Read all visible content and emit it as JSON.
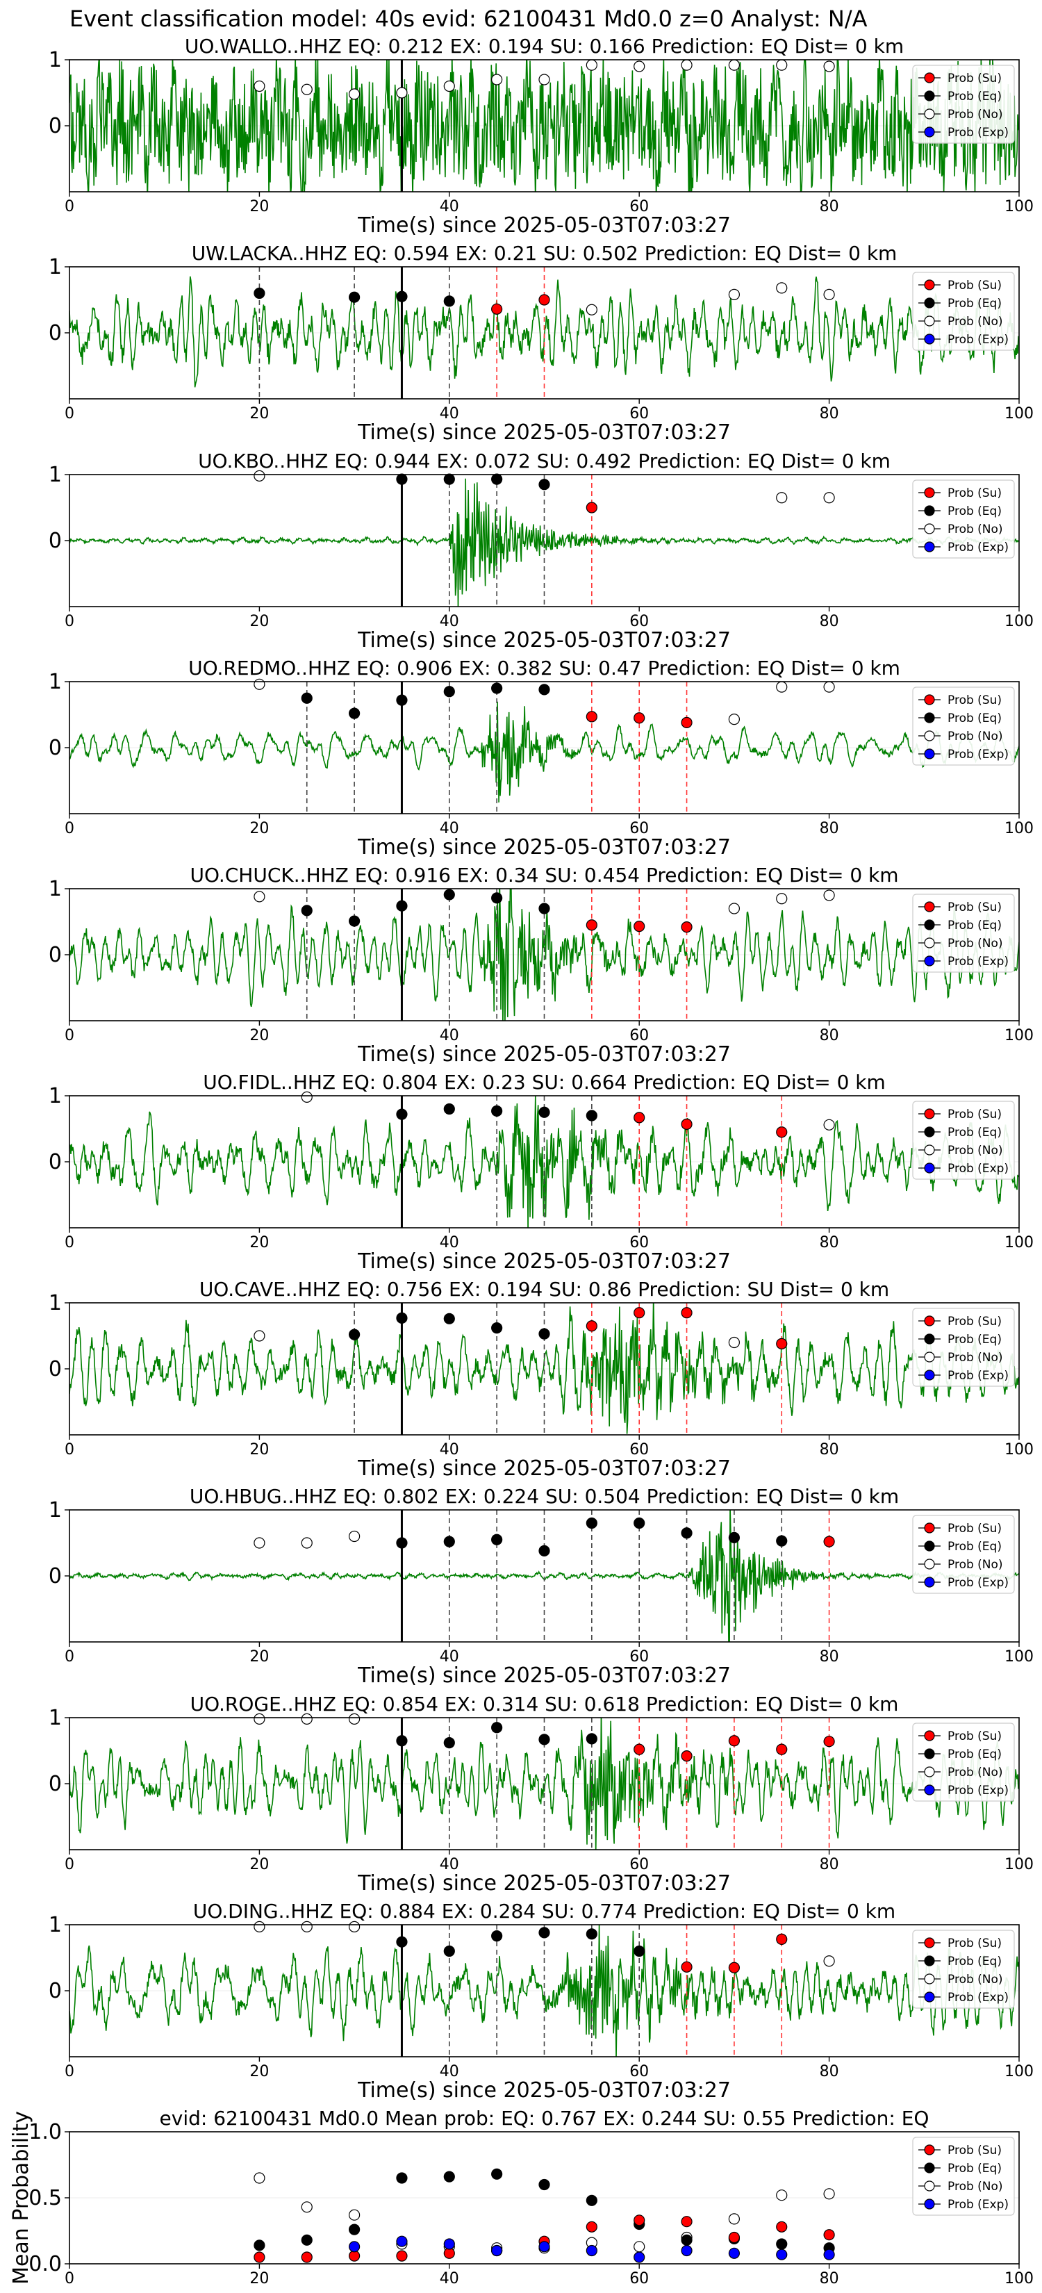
{
  "figure": {
    "suptitle": "Event classification model: 40s evid: 62100431 Md0.0 z=0 Analyst: N/A",
    "xlabel": "Time(s) since 2025-05-03T07:03:27",
    "colors": {
      "trace": "#008000",
      "su": "#ff0000",
      "eq": "#000000",
      "no": "#ffffff",
      "exp": "#0000ff",
      "pick": "#000000"
    },
    "legend": [
      "Prob (Su)",
      "Prob (Eq)",
      "Prob (No)",
      "Prob (Exp)"
    ]
  },
  "chart_data": [
    {
      "type": "line",
      "title": "UO.WALLO..HHZ   EQ: 0.212  EX: 0.194  SU: 0.166   Prediction: EQ    Dist= 0 km",
      "xlim": [
        0,
        100
      ],
      "ylim": [
        -1,
        1
      ],
      "xticks": [
        0,
        20,
        40,
        60,
        80,
        100
      ],
      "yticks": [
        0,
        1
      ],
      "pick_time": 35,
      "amplitude": 0.55,
      "noise": 0.8,
      "event": null,
      "su_points": [],
      "eq_points": [],
      "no_points": [
        [
          20,
          0.6
        ],
        [
          25,
          0.55
        ],
        [
          30,
          0.48
        ],
        [
          35,
          0.5
        ],
        [
          40,
          0.6
        ],
        [
          45,
          0.7
        ],
        [
          50,
          0.7
        ],
        [
          55,
          0.92
        ],
        [
          60,
          0.9
        ],
        [
          65,
          0.92
        ],
        [
          70,
          0.92
        ],
        [
          75,
          0.92
        ],
        [
          80,
          0.9
        ]
      ],
      "exp_points": [],
      "su_lines": [],
      "eq_lines": []
    },
    {
      "type": "line",
      "title": "UW.LACKA..HHZ   EQ: 0.594  EX: 0.21  SU: 0.502   Prediction: EQ    Dist= 0 km",
      "xlim": [
        0,
        100
      ],
      "ylim": [
        -1,
        1
      ],
      "xticks": [
        0,
        20,
        40,
        60,
        80,
        100
      ],
      "yticks": [
        0,
        1
      ],
      "pick_time": 35,
      "amplitude": 0.6,
      "noise": 0.15,
      "event": null,
      "su_points": [
        [
          45,
          0.36
        ],
        [
          50,
          0.5
        ]
      ],
      "eq_points": [
        [
          20,
          0.6
        ],
        [
          30,
          0.54
        ],
        [
          35,
          0.55
        ],
        [
          40,
          0.48
        ]
      ],
      "no_points": [
        [
          55,
          0.35
        ],
        [
          70,
          0.58
        ],
        [
          75,
          0.68
        ],
        [
          80,
          0.58
        ]
      ],
      "exp_points": [],
      "su_lines": [
        45,
        50
      ],
      "eq_lines": [
        20,
        30,
        40
      ]
    },
    {
      "type": "line",
      "title": "UO.KBO..HHZ   EQ: 0.944  EX: 0.072  SU: 0.492   Prediction: EQ    Dist= 0 km",
      "xlim": [
        0,
        100
      ],
      "ylim": [
        -1,
        1
      ],
      "xticks": [
        0,
        20,
        40,
        60,
        80,
        100
      ],
      "yticks": [
        0,
        1
      ],
      "pick_time": 35,
      "amplitude": 0.04,
      "noise": 0.02,
      "event": {
        "start": 40,
        "peak": 41,
        "amp": 0.95,
        "decay": 5
      },
      "su_points": [
        [
          55,
          0.5
        ]
      ],
      "eq_points": [
        [
          35,
          0.93
        ],
        [
          40,
          0.93
        ],
        [
          45,
          0.93
        ],
        [
          50,
          0.85
        ]
      ],
      "no_points": [
        [
          20,
          0.98
        ],
        [
          75,
          0.65
        ],
        [
          80,
          0.65
        ]
      ],
      "exp_points": [],
      "su_lines": [
        55
      ],
      "eq_lines": [
        40,
        45,
        50
      ]
    },
    {
      "type": "line",
      "title": "UO.REDMO..HHZ   EQ: 0.906  EX: 0.382  SU: 0.47   Prediction: EQ    Dist= 0 km",
      "xlim": [
        0,
        100
      ],
      "ylim": [
        -1,
        1
      ],
      "xticks": [
        0,
        20,
        40,
        60,
        80,
        100
      ],
      "yticks": [
        0,
        1
      ],
      "pick_time": 35,
      "amplitude": 0.25,
      "noise": 0.04,
      "event": {
        "start": 43,
        "peak": 45,
        "amp": 0.75,
        "decay": 3
      },
      "su_points": [
        [
          55,
          0.47
        ],
        [
          60,
          0.45
        ],
        [
          65,
          0.38
        ]
      ],
      "eq_points": [
        [
          25,
          0.75
        ],
        [
          30,
          0.52
        ],
        [
          35,
          0.72
        ],
        [
          40,
          0.85
        ],
        [
          45,
          0.9
        ],
        [
          50,
          0.88
        ]
      ],
      "no_points": [
        [
          20,
          0.96
        ],
        [
          70,
          0.43
        ],
        [
          75,
          0.92
        ],
        [
          80,
          0.92
        ]
      ],
      "exp_points": [],
      "su_lines": [
        55,
        60,
        65
      ],
      "eq_lines": [
        25,
        30,
        40,
        45
      ]
    },
    {
      "type": "line",
      "title": "UO.CHUCK..HHZ   EQ: 0.916  EX: 0.34  SU: 0.454   Prediction: EQ    Dist= 0 km",
      "xlim": [
        0,
        100
      ],
      "ylim": [
        -1,
        1
      ],
      "xticks": [
        0,
        20,
        40,
        60,
        80,
        100
      ],
      "yticks": [
        0,
        1
      ],
      "pick_time": 35,
      "amplitude": 0.55,
      "noise": 0.1,
      "event": {
        "start": 43,
        "peak": 45,
        "amp": 0.9,
        "decay": 5
      },
      "su_points": [
        [
          55,
          0.45
        ],
        [
          60,
          0.43
        ],
        [
          65,
          0.42
        ]
      ],
      "eq_points": [
        [
          25,
          0.67
        ],
        [
          30,
          0.51
        ],
        [
          35,
          0.74
        ],
        [
          40,
          0.91
        ],
        [
          45,
          0.86
        ],
        [
          50,
          0.7
        ]
      ],
      "no_points": [
        [
          20,
          0.88
        ],
        [
          70,
          0.7
        ],
        [
          75,
          0.85
        ],
        [
          80,
          0.9
        ]
      ],
      "exp_points": [],
      "su_lines": [
        55,
        60,
        65
      ],
      "eq_lines": [
        25,
        30,
        40,
        45,
        50
      ]
    },
    {
      "type": "line",
      "title": "UO.FIDL..HHZ   EQ: 0.804  EX: 0.23  SU: 0.664   Prediction: EQ    Dist= 0 km",
      "xlim": [
        0,
        100
      ],
      "ylim": [
        -1,
        1
      ],
      "xticks": [
        0,
        20,
        40,
        60,
        80,
        100
      ],
      "yticks": [
        0,
        1
      ],
      "pick_time": 35,
      "amplitude": 0.55,
      "noise": 0.12,
      "event": {
        "start": 44,
        "peak": 48,
        "amp": 0.6,
        "decay": 8
      },
      "su_points": [
        [
          60,
          0.67
        ],
        [
          65,
          0.57
        ],
        [
          75,
          0.45
        ]
      ],
      "eq_points": [
        [
          35,
          0.72
        ],
        [
          40,
          0.8
        ],
        [
          45,
          0.77
        ],
        [
          50,
          0.75
        ],
        [
          55,
          0.7
        ]
      ],
      "no_points": [
        [
          25,
          0.98
        ],
        [
          80,
          0.56
        ]
      ],
      "exp_points": [],
      "su_lines": [
        60,
        65,
        75
      ],
      "eq_lines": [
        45,
        50,
        55
      ]
    },
    {
      "type": "line",
      "title": "UO.CAVE..HHZ   EQ: 0.756  EX: 0.194  SU: 0.86   Prediction: SU    Dist= 0 km",
      "xlim": [
        0,
        100
      ],
      "ylim": [
        -1,
        1
      ],
      "xticks": [
        0,
        20,
        40,
        60,
        80,
        100
      ],
      "yticks": [
        0,
        1
      ],
      "pick_time": 35,
      "amplitude": 0.55,
      "noise": 0.12,
      "event": {
        "start": 50,
        "peak": 58,
        "amp": 0.6,
        "decay": 8
      },
      "su_points": [
        [
          55,
          0.65
        ],
        [
          60,
          0.85
        ],
        [
          65,
          0.85
        ],
        [
          75,
          0.38
        ]
      ],
      "eq_points": [
        [
          30,
          0.52
        ],
        [
          35,
          0.77
        ],
        [
          40,
          0.76
        ],
        [
          45,
          0.62
        ],
        [
          50,
          0.53
        ]
      ],
      "no_points": [
        [
          20,
          0.5
        ],
        [
          70,
          0.4
        ]
      ],
      "exp_points": [],
      "su_lines": [
        55,
        60,
        65,
        75
      ],
      "eq_lines": [
        30,
        45,
        50
      ]
    },
    {
      "type": "line",
      "title": "UO.HBUG..HHZ   EQ: 0.802  EX: 0.224  SU: 0.504   Prediction: EQ    Dist= 0 km",
      "xlim": [
        0,
        100
      ],
      "ylim": [
        -1,
        1
      ],
      "xticks": [
        0,
        20,
        40,
        60,
        80,
        100
      ],
      "yticks": [
        0,
        1
      ],
      "pick_time": 35,
      "amplitude": 0.04,
      "noise": 0.02,
      "event": {
        "start": 65,
        "peak": 69.5,
        "amp": 0.95,
        "decay": 3
      },
      "su_points": [
        [
          80,
          0.52
        ]
      ],
      "eq_points": [
        [
          35,
          0.5
        ],
        [
          40,
          0.52
        ],
        [
          45,
          0.55
        ],
        [
          50,
          0.38
        ],
        [
          55,
          0.8
        ],
        [
          60,
          0.8
        ],
        [
          65,
          0.65
        ],
        [
          70,
          0.58
        ],
        [
          75,
          0.53
        ]
      ],
      "no_points": [
        [
          20,
          0.5
        ],
        [
          25,
          0.5
        ],
        [
          30,
          0.6
        ]
      ],
      "exp_points": [],
      "su_lines": [
        80
      ],
      "eq_lines": [
        40,
        45,
        50,
        55,
        60,
        65,
        70,
        75
      ]
    },
    {
      "type": "line",
      "title": "UO.ROGE..HHZ   EQ: 0.854  EX: 0.314  SU: 0.618   Prediction: EQ    Dist= 0 km",
      "xlim": [
        0,
        100
      ],
      "ylim": [
        -1,
        1
      ],
      "xticks": [
        0,
        20,
        40,
        60,
        80,
        100
      ],
      "yticks": [
        0,
        1
      ],
      "pick_time": 35,
      "amplitude": 0.6,
      "noise": 0.12,
      "event": {
        "start": 50,
        "peak": 56,
        "amp": 0.6,
        "decay": 8
      },
      "su_points": [
        [
          60,
          0.52
        ],
        [
          65,
          0.42
        ],
        [
          70,
          0.65
        ],
        [
          75,
          0.52
        ],
        [
          80,
          0.64
        ]
      ],
      "eq_points": [
        [
          35,
          0.65
        ],
        [
          40,
          0.62
        ],
        [
          45,
          0.85
        ],
        [
          50,
          0.67
        ],
        [
          55,
          0.68
        ]
      ],
      "no_points": [
        [
          20,
          0.98
        ],
        [
          25,
          0.98
        ],
        [
          30,
          0.98
        ]
      ],
      "exp_points": [],
      "su_lines": [
        60,
        65,
        70,
        75,
        80
      ],
      "eq_lines": [
        40,
        45,
        50,
        55
      ]
    },
    {
      "type": "line",
      "title": "UO.DING..HHZ   EQ: 0.884  EX: 0.284  SU: 0.774   Prediction: EQ    Dist= 0 km",
      "xlim": [
        0,
        100
      ],
      "ylim": [
        -1,
        1
      ],
      "xticks": [
        0,
        20,
        40,
        60,
        80,
        100
      ],
      "yticks": [
        0,
        1
      ],
      "pick_time": 35,
      "amplitude": 0.6,
      "noise": 0.12,
      "event": {
        "start": 50,
        "peak": 56,
        "amp": 0.55,
        "decay": 8
      },
      "su_points": [
        [
          65,
          0.36
        ],
        [
          70,
          0.35
        ],
        [
          75,
          0.78
        ]
      ],
      "eq_points": [
        [
          35,
          0.74
        ],
        [
          40,
          0.6
        ],
        [
          45,
          0.83
        ],
        [
          50,
          0.88
        ],
        [
          55,
          0.86
        ],
        [
          60,
          0.6
        ]
      ],
      "no_points": [
        [
          20,
          0.97
        ],
        [
          25,
          0.97
        ],
        [
          30,
          0.97
        ],
        [
          80,
          0.45
        ]
      ],
      "exp_points": [],
      "su_lines": [
        65,
        70,
        75
      ],
      "eq_lines": [
        40,
        45,
        50,
        55,
        60
      ]
    },
    {
      "type": "scatter",
      "title": "evid: 62100431  Md0.0   Mean prob:   EQ: 0.767  EX: 0.244  SU: 0.55   Prediction: EQ",
      "ylabel": "Mean Probability",
      "xlim": [
        0,
        100
      ],
      "ylim": [
        0,
        1
      ],
      "xticks": [
        0,
        20,
        40,
        60,
        80,
        100
      ],
      "yticks": [
        0.0,
        0.5,
        1.0
      ],
      "ytick_labels": [
        "0.0",
        "0.5",
        "1.0"
      ],
      "su_points": [
        [
          20,
          0.05
        ],
        [
          25,
          0.05
        ],
        [
          30,
          0.06
        ],
        [
          35,
          0.06
        ],
        [
          40,
          0.08
        ],
        [
          45,
          0.1
        ],
        [
          50,
          0.17
        ],
        [
          55,
          0.28
        ],
        [
          60,
          0.33
        ],
        [
          65,
          0.32
        ],
        [
          70,
          0.2
        ],
        [
          75,
          0.28
        ],
        [
          80,
          0.22
        ]
      ],
      "eq_points": [
        [
          20,
          0.14
        ],
        [
          25,
          0.18
        ],
        [
          30,
          0.26
        ],
        [
          35,
          0.65
        ],
        [
          40,
          0.66
        ],
        [
          45,
          0.68
        ],
        [
          50,
          0.6
        ],
        [
          55,
          0.48
        ],
        [
          60,
          0.3
        ],
        [
          65,
          0.18
        ],
        [
          70,
          0.19
        ],
        [
          75,
          0.15
        ],
        [
          80,
          0.12
        ]
      ],
      "no_points": [
        [
          20,
          0.65
        ],
        [
          25,
          0.43
        ],
        [
          30,
          0.37
        ],
        [
          35,
          0.15
        ],
        [
          40,
          0.13
        ],
        [
          45,
          0.12
        ],
        [
          50,
          0.12
        ],
        [
          55,
          0.16
        ],
        [
          60,
          0.13
        ],
        [
          65,
          0.2
        ],
        [
          70,
          0.34
        ],
        [
          75,
          0.52
        ],
        [
          80,
          0.53
        ]
      ],
      "exp_points": [
        [
          30,
          0.13
        ],
        [
          35,
          0.17
        ],
        [
          40,
          0.15
        ],
        [
          45,
          0.1
        ],
        [
          50,
          0.13
        ],
        [
          55,
          0.1
        ],
        [
          60,
          0.05
        ],
        [
          65,
          0.1
        ],
        [
          70,
          0.08
        ],
        [
          75,
          0.07
        ],
        [
          80,
          0.07
        ]
      ]
    }
  ]
}
